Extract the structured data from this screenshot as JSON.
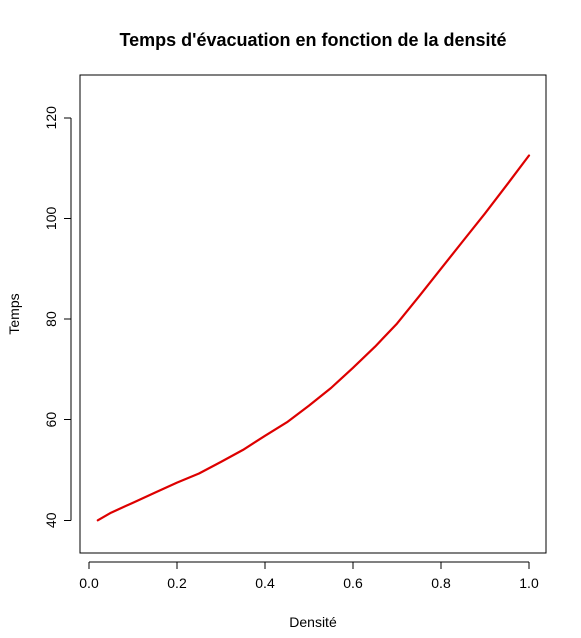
{
  "chart_data": {
    "type": "line",
    "title": "Temps d'évacuation en fonction de la densité",
    "xlabel": "Densité",
    "ylabel": "Temps",
    "xlim": [
      0.0,
      1.0
    ],
    "ylim": [
      33.5,
      128.5
    ],
    "x_ticks": [
      {
        "value": 0.0,
        "label": "0.0"
      },
      {
        "value": 0.2,
        "label": "0.2"
      },
      {
        "value": 0.4,
        "label": "0.4"
      },
      {
        "value": 0.6,
        "label": "0.6"
      },
      {
        "value": 0.8,
        "label": "0.8"
      },
      {
        "value": 1.0,
        "label": "1.0"
      }
    ],
    "y_ticks": [
      {
        "value": 40,
        "label": "40"
      },
      {
        "value": 60,
        "label": "60"
      },
      {
        "value": 80,
        "label": "80"
      },
      {
        "value": 100,
        "label": "100"
      },
      {
        "value": 120,
        "label": "120"
      }
    ],
    "grid": false,
    "series": [
      {
        "color": "#dd0000",
        "x": [
          0.02,
          0.05,
          0.1,
          0.15,
          0.2,
          0.25,
          0.3,
          0.35,
          0.4,
          0.45,
          0.5,
          0.55,
          0.6,
          0.65,
          0.7,
          0.75,
          0.8,
          0.85,
          0.9,
          0.95,
          1.0
        ],
        "y": [
          40.0,
          41.5,
          43.5,
          45.5,
          47.5,
          49.3,
          51.6,
          54.0,
          56.8,
          59.5,
          62.8,
          66.3,
          70.3,
          74.5,
          79.1,
          84.5,
          90.0,
          95.5,
          101.0,
          106.7,
          112.5
        ]
      }
    ]
  }
}
